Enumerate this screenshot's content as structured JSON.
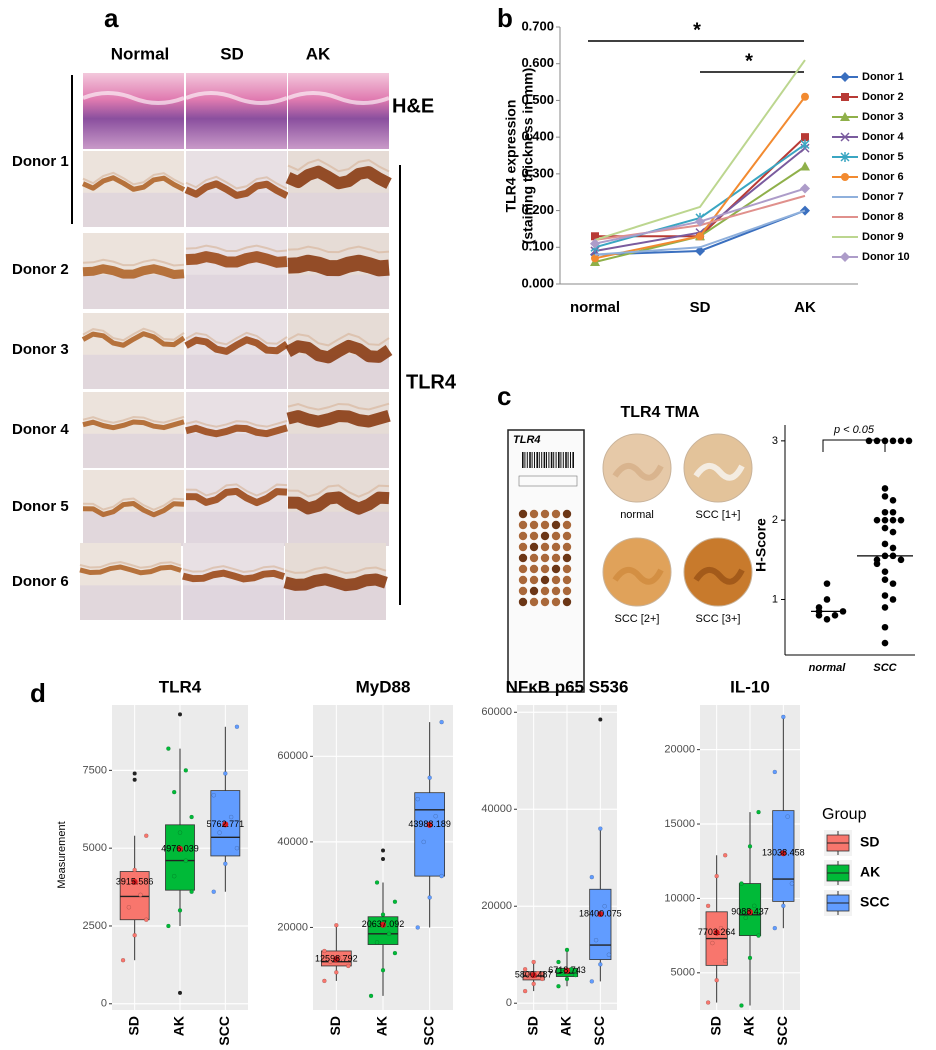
{
  "panel_labels": [
    "a",
    "b",
    "c",
    "d"
  ],
  "panel_a": {
    "columns": [
      "Normal",
      "SD",
      "AK"
    ],
    "rows": [
      "Donor 1",
      "Donor 2",
      "Donor 3",
      "Donor 4",
      "Donor 5",
      "Donor 6"
    ],
    "stains": [
      "H&E",
      "TLR4"
    ]
  },
  "panel_c": {
    "title": "TLR4 TMA",
    "slide_label": "TLR4",
    "cores": [
      "normal",
      "SCC [1+]",
      "SCC [2+]",
      "SCC [3+]"
    ]
  },
  "chart_data": [
    {
      "type": "line",
      "categories": [
        "normal",
        "SD",
        "AK"
      ],
      "ylabel": [
        "TLR4 expression",
        "(staining thickness in mm)"
      ],
      "ylim": [
        0,
        0.7
      ],
      "yticks": [
        {
          "value": 0,
          "label": "0.000"
        },
        {
          "value": 0.1,
          "label": "0.100"
        },
        {
          "value": 0.2,
          "label": "0.200"
        },
        {
          "value": 0.3,
          "label": "0.300"
        },
        {
          "value": 0.4,
          "label": "0.400"
        },
        {
          "value": 0.5,
          "label": "0.500"
        },
        {
          "value": 0.6,
          "label": "0.600"
        },
        {
          "value": 0.7,
          "label": "0.700"
        }
      ],
      "annotations": [
        "*",
        "*"
      ],
      "series": [
        {
          "name": "Donor 1",
          "color": "#3a6fbf",
          "marker": "diamond",
          "values": [
            0.08,
            0.09,
            0.2
          ]
        },
        {
          "name": "Donor 2",
          "color": "#b83a35",
          "marker": "square",
          "values": [
            0.13,
            0.13,
            0.4
          ]
        },
        {
          "name": "Donor 3",
          "color": "#8fb04a",
          "marker": "triangle",
          "values": [
            0.06,
            0.13,
            0.32
          ]
        },
        {
          "name": "Donor 4",
          "color": "#7a5b9e",
          "marker": "x",
          "values": [
            0.09,
            0.14,
            0.37
          ]
        },
        {
          "name": "Donor 5",
          "color": "#3aa6c2",
          "marker": "star",
          "values": [
            0.1,
            0.18,
            0.38
          ]
        },
        {
          "name": "Donor 6",
          "color": "#f28a30",
          "marker": "circle",
          "values": [
            0.07,
            0.13,
            0.51
          ]
        },
        {
          "name": "Donor 7",
          "color": "#8fb0dc",
          "marker": "none",
          "values": [
            0.08,
            0.1,
            0.2
          ]
        },
        {
          "name": "Donor 8",
          "color": "#e0908c",
          "marker": "none",
          "values": [
            0.12,
            0.16,
            0.24
          ]
        },
        {
          "name": "Donor 9",
          "color": "#bcd68f",
          "marker": "none",
          "values": [
            0.12,
            0.21,
            0.61
          ]
        },
        {
          "name": "Donor 10",
          "color": "#ad9cc9",
          "marker": "diamond",
          "values": [
            0.11,
            0.17,
            0.26
          ]
        }
      ]
    },
    {
      "type": "dot",
      "categories": [
        "normal",
        "SCC"
      ],
      "ylabel": "H-Score",
      "annotation": "p < 0.05",
      "ylim": [
        0.3,
        3.2
      ],
      "yticks": [
        1,
        2,
        3
      ],
      "values": [
        [
          0.75,
          0.8,
          0.8,
          0.85,
          0.85,
          0.9,
          1.0,
          1.2
        ],
        [
          3,
          3,
          3,
          3,
          3,
          3,
          2.4,
          2.3,
          2.25,
          2.1,
          2.1,
          2.0,
          2.0,
          2.0,
          2.0,
          1.9,
          1.85,
          1.7,
          1.65,
          1.55,
          1.55,
          1.5,
          1.5,
          1.45,
          1.35,
          1.25,
          1.2,
          1.05,
          1.0,
          0.9,
          0.65,
          0.45
        ]
      ],
      "means": [
        0.85,
        1.55
      ]
    },
    {
      "type": "box",
      "title": "TLR4",
      "ylabel": "Measurement",
      "categories": [
        "SD",
        "AK",
        "SCC"
      ],
      "colors": [
        "#f8766d",
        "#00ba38",
        "#619cff"
      ],
      "ylim": [
        -200,
        9600
      ],
      "yticks": [
        0,
        2500,
        5000,
        7500
      ],
      "grid": true,
      "boxes": [
        {
          "low": 1400,
          "q1": 2700,
          "median": 3450,
          "q3": 4250,
          "high": 5400,
          "mean": 3915.586,
          "points": [
            1400,
            2200,
            2700,
            3100,
            3500,
            3900,
            4300,
            5400
          ],
          "outliers": [
            7200,
            7400
          ]
        },
        {
          "low": 2500,
          "q1": 3650,
          "median": 4600,
          "q3": 5750,
          "high": 8200,
          "mean": 4976.039,
          "points": [
            2500,
            3000,
            3600,
            4100,
            4600,
            5000,
            5500,
            6000,
            6800,
            7500,
            8200
          ],
          "outliers": [
            350,
            9300
          ]
        },
        {
          "low": 3600,
          "q1": 4750,
          "median": 5350,
          "q3": 6850,
          "high": 8900,
          "mean": 5762.771,
          "points": [
            3600,
            4500,
            5000,
            5500,
            6000,
            6700,
            7400,
            8900
          ],
          "outliers": []
        }
      ]
    },
    {
      "type": "box",
      "title": "MyD88",
      "categories": [
        "SD",
        "AK",
        "SCC"
      ],
      "colors": [
        "#f8766d",
        "#00ba38",
        "#619cff"
      ],
      "ylim": [
        700,
        72000
      ],
      "yticks": [
        20000,
        40000,
        60000
      ],
      "grid": true,
      "boxes": [
        {
          "low": 7500,
          "q1": 11000,
          "median": 12000,
          "q3": 14500,
          "high": 20500,
          "mean": 12598.792,
          "points": [
            7500,
            9500,
            11000,
            12000,
            13000,
            14500,
            20500
          ],
          "outliers": []
        },
        {
          "low": 4000,
          "q1": 16000,
          "median": 18500,
          "q3": 22500,
          "high": 30500,
          "mean": 20637.092,
          "points": [
            4000,
            10000,
            14000,
            16500,
            18500,
            20500,
            23000,
            26000,
            30500
          ],
          "outliers": [
            36000,
            38000
          ]
        },
        {
          "low": 20000,
          "q1": 32000,
          "median": 47500,
          "q3": 51500,
          "high": 68000,
          "mean": 43988.189,
          "points": [
            20000,
            27000,
            32000,
            40000,
            46000,
            50000,
            55000,
            68000
          ],
          "outliers": []
        }
      ]
    },
    {
      "type": "box",
      "title": "NFκB p65 S536",
      "categories": [
        "SD",
        "AK",
        "SCC"
      ],
      "colors": [
        "#f8766d",
        "#00ba38",
        "#619cff"
      ],
      "ylim": [
        -1400,
        61500
      ],
      "yticks": [
        0,
        20000,
        40000,
        60000
      ],
      "grid": true,
      "boxes": [
        {
          "low": 2500,
          "q1": 4800,
          "median": 5600,
          "q3": 6500,
          "high": 8500,
          "mean": 5800.487,
          "points": [
            2500,
            4000,
            5000,
            5600,
            6200,
            7000,
            8500
          ],
          "outliers": []
        },
        {
          "low": 3500,
          "q1": 5500,
          "median": 6200,
          "q3": 7200,
          "high": 11000,
          "mean": 6718.743,
          "points": [
            3500,
            5000,
            5800,
            6400,
            7000,
            8500,
            11000
          ],
          "outliers": []
        },
        {
          "low": 4500,
          "q1": 9000,
          "median": 12000,
          "q3": 23500,
          "high": 36000,
          "mean": 18400.075,
          "points": [
            4500,
            8000,
            10000,
            13000,
            20000,
            26000,
            36000
          ],
          "outliers": [
            58500
          ]
        }
      ]
    },
    {
      "type": "box",
      "title": "IL-10",
      "categories": [
        "SD",
        "AK",
        "SCC"
      ],
      "legend_title": "Group",
      "colors": [
        "#f8766d",
        "#00ba38",
        "#619cff"
      ],
      "ylim": [
        2500,
        23000
      ],
      "yticks": [
        5000,
        10000,
        15000,
        20000
      ],
      "grid": true,
      "boxes": [
        {
          "low": 3000,
          "q1": 5500,
          "median": 7300,
          "q3": 9100,
          "high": 12900,
          "mean": 7703.264,
          "points": [
            3000,
            4500,
            5800,
            7000,
            8000,
            9500,
            11500,
            12900
          ],
          "outliers": []
        },
        {
          "low": 2800,
          "q1": 7500,
          "median": 8900,
          "q3": 11000,
          "high": 15800,
          "mean": 9088.437,
          "points": [
            2800,
            6000,
            7500,
            8700,
            9500,
            11000,
            13500,
            15800
          ],
          "outliers": []
        },
        {
          "low": 8000,
          "q1": 9800,
          "median": 11300,
          "q3": 15900,
          "high": 22200,
          "mean": 13038.458,
          "points": [
            8000,
            9500,
            11000,
            13000,
            15500,
            18500,
            22200
          ],
          "outliers": []
        }
      ]
    }
  ]
}
